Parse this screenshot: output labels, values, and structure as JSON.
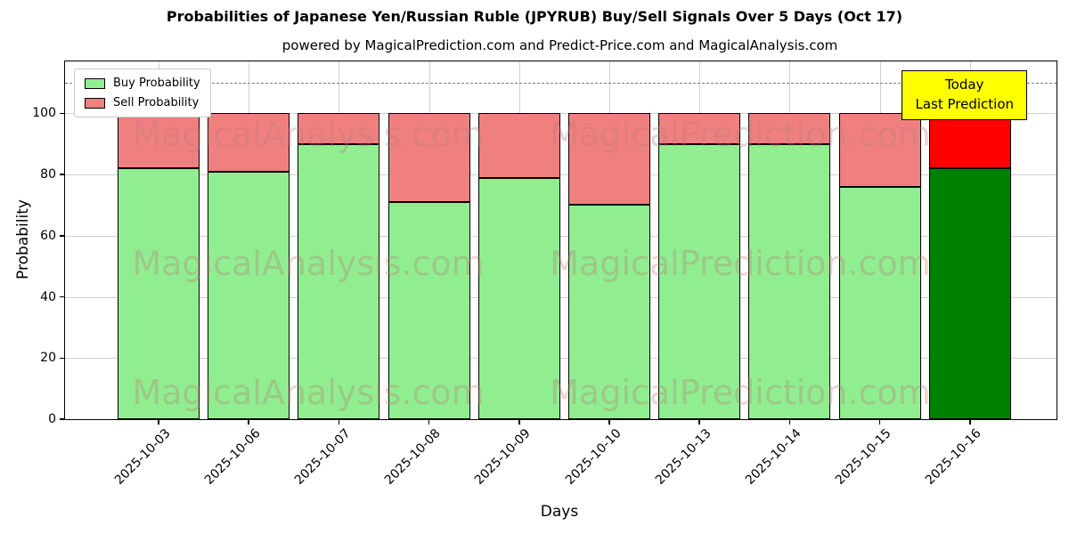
{
  "header": {
    "title": "Probabilities of Japanese Yen/Russian Ruble (JPYRUB) Buy/Sell Signals Over 5 Days (Oct 17)",
    "subtitle": "powered by MagicalPrediction.com and Predict-Price.com and MagicalAnalysis.com"
  },
  "legend": {
    "items": [
      {
        "label": "Buy Probability",
        "color": "#90EE90"
      },
      {
        "label": "Sell Probability",
        "color": "#F08080"
      }
    ]
  },
  "annotation": {
    "line1": "Today",
    "line2": "Last Prediction",
    "bg": "#FFFF00"
  },
  "watermarks": {
    "texts": [
      "MagicalAnalysis.com",
      "MagicalPrediction.com"
    ]
  },
  "chart_data": {
    "type": "bar",
    "stacked": true,
    "title": "Probabilities of Japanese Yen/Russian Ruble (JPYRUB) Buy/Sell Signals Over 5 Days (Oct 17)",
    "xlabel": "Days",
    "ylabel": "Probability",
    "categories": [
      "2025-10-03",
      "2025-10-06",
      "2025-10-07",
      "2025-10-08",
      "2025-10-09",
      "2025-10-10",
      "2025-10-13",
      "2025-10-14",
      "2025-10-15",
      "2025-10-16"
    ],
    "series": [
      {
        "name": "Buy Probability",
        "values": [
          82,
          81,
          90,
          71,
          79,
          70,
          90,
          90,
          76,
          82
        ],
        "color": "#90EE90",
        "last_color": "#008000"
      },
      {
        "name": "Sell Probability",
        "values": [
          18,
          19,
          10,
          29,
          21,
          30,
          10,
          10,
          24,
          18
        ],
        "color": "#F08080",
        "last_color": "#FF0000"
      }
    ],
    "ylim": [
      0,
      117
    ],
    "yticks": [
      0,
      20,
      40,
      60,
      80,
      100
    ],
    "dashed_line_y": 110,
    "grid": true,
    "legend_position": "upper left"
  }
}
